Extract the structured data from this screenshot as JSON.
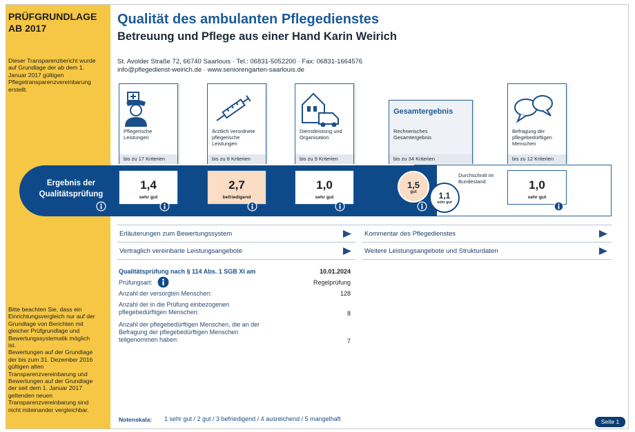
{
  "sidebar": {
    "title": "PRÜFGRUNDLAGE AB 2017",
    "notes": [
      "Dieser Transparenzbericht wurde auf Grundlage der ab dem 1. Januar 2017 gültigen Pflegetransparenzvereinbarung erstellt.",
      "Bitte beachten Sie, dass ein Einrichtungsvergleich nur auf der Grundlage von Berichten mit gleicher Prüfgrundlage und Bewertungssystematik möglich ist.",
      "Bewertungen auf der Grundlage der bis zum 31. Dezember 2016 gültigen alten Transparenzvereinbarung und Bewertungen auf der Grundlage der seit dem 1. Januar 2017 geltenden neuen Transparenzvereinbarung sind nicht miteinander vergleichbar."
    ]
  },
  "header": {
    "title": "Qualität des ambulanten Pflegedienstes",
    "subtitle": "Betreuung und Pflege aus einer Hand Karin Weirich",
    "address": "St. Avolder Straße 72, 66740 Saarlouis · Tel.: 06831-5052200 · Fax: 06831-1664576",
    "contact": "info@pflegedienst-weirich.de · www.seniorengarten-saarlouis.de"
  },
  "result_label": "Ergebnis der Qualitätsprüfung",
  "categories": [
    {
      "label": "Pflegerische Leistungen",
      "criteria": "bis zu 17 Kriterien",
      "score": "1,4",
      "rating": "sehr gut"
    },
    {
      "label": "Ärztlich verordnete pflegerische Leistungen",
      "criteria": "bis zu 8 Kriterien",
      "score": "2,7",
      "rating": "befriedigend"
    },
    {
      "label": "Dienstleistung und Organisation",
      "criteria": "bis zu 9 Kriterien",
      "score": "1,0",
      "rating": "sehr gut"
    },
    {
      "label": "Befragung der pflegebedürftigen Menschen",
      "criteria": "bis zu 12 Kriterien",
      "score": "1,0",
      "rating": "sehr gut"
    }
  ],
  "overall": {
    "title": "Gesamtergebnis",
    "label": "Rechnerisches Gesamtergebnis",
    "criteria": "bis zu 34 Kriterien",
    "score": "1,5",
    "rating": "gut",
    "average_label": "Durchschnitt im Bundesland",
    "average_score": "1,1",
    "average_rating": "sehr gut"
  },
  "links": [
    "Erläuterungen zum Bewertungssystem",
    "Kommentar des Pflegedienstes",
    "Vertraglich vereinbarte Leistungsangebote",
    "Weitere Leistungsangebote und Strukturdaten"
  ],
  "details": {
    "rows": [
      [
        "Qualitätsprüfung nach § 114 Abs. 1 SGB XI am",
        "10.01.2024"
      ],
      [
        "Prüfungsart:",
        "Regelprüfung"
      ],
      [
        "Anzahl der versorgten Menschen:",
        128
      ],
      [
        "Anzahl der in die Prüfung einbezogenen pflegebedürftigen Menschen:",
        8
      ],
      [
        "Anzahl der pflegebedürftigen Menschen, die an der Befragung der pflegebedürftigen Menschen teilgenommen haben:",
        7
      ]
    ]
  },
  "footer": {
    "scale_label": "Notenskala:",
    "scale": "1 sehr gut / 2 gut / 3 befriedigend / 4 ausreichend / 5 mangelhaft",
    "page": "Seite 1"
  }
}
